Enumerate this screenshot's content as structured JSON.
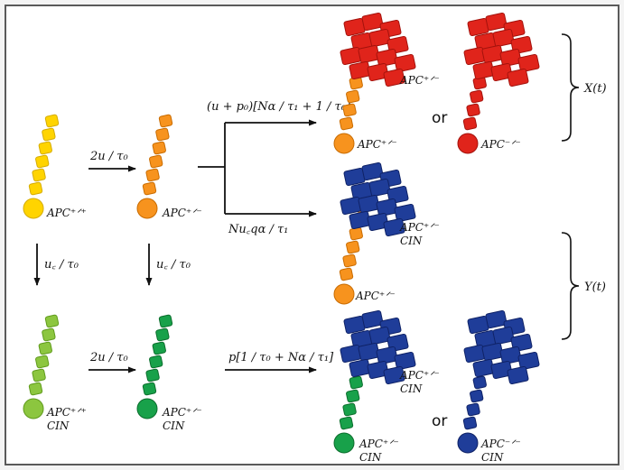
{
  "colors": {
    "yellow": "#ffd400",
    "yellow_dark": "#d4ab00",
    "orange": "#f7931e",
    "orange_dark": "#c86b00",
    "light_green": "#8cc63f",
    "light_green_dark": "#5f9a1b",
    "green": "#18a14a",
    "green_dark": "#0b6d2c",
    "red": "#e0241b",
    "red_dark": "#a3120c",
    "blue": "#1f3d99",
    "blue_dark": "#0f2266",
    "line": "#111111",
    "frame": "#5a5a5a"
  },
  "labels": {
    "apc_wt": "APC⁺ᐟ⁺",
    "apc_het": "APC⁺ᐟ⁻",
    "apc_null": "APC⁻ᐟ⁻",
    "cin": "CIN"
  },
  "rates": {
    "top_mut": "2u / τ₀",
    "left_cin": "u꜀ / τ₀",
    "mid_cin": "u꜀ / τ₀",
    "bottom_mut": "2u / τ₀",
    "upper_branch": "(u + p₀)[Nα / τ₁ + 1 / τ₀]",
    "lower_branch": "Nu꜀qα / τ₁",
    "bottom_branch": "p[1 / τ₀ + Nα / τ₁]"
  },
  "outcomes": {
    "or_label": "or",
    "x_label": "X(t)",
    "y_label": "Y(t)"
  }
}
